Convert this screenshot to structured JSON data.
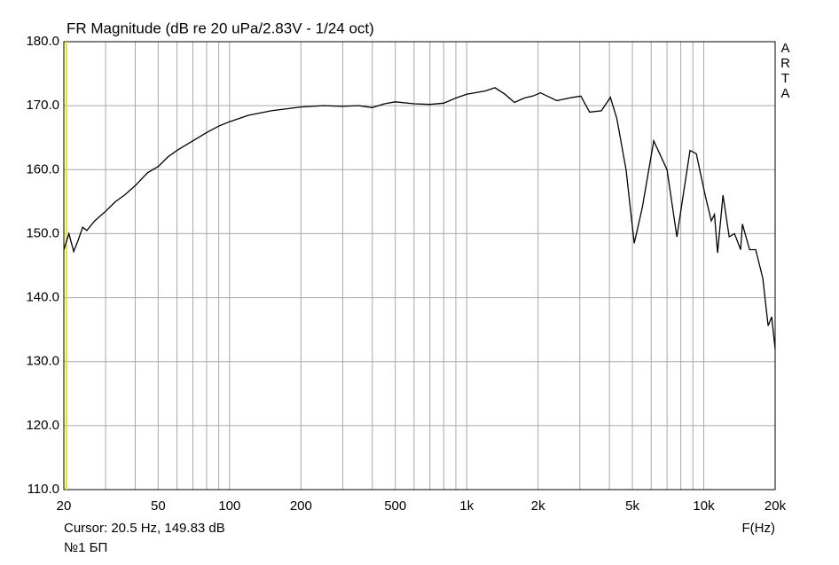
{
  "chart_data": {
    "type": "line",
    "title": "FR Magnitude (dB re 20 uPa/2.83V - 1/24 oct)",
    "x_label": "F(Hz)",
    "watermark": "ARTA",
    "footer": "№1 БП",
    "cursor": {
      "label": "Cursor: 20.5 Hz, 149.83 dB",
      "x": 20.5,
      "color": "#e8e800"
    },
    "x_scale": "log",
    "grid": true,
    "xlim": [
      20,
      20000
    ],
    "xticks": [
      20,
      50,
      100,
      200,
      500,
      {
        "value": 1000,
        "label": "1k"
      },
      {
        "value": 2000,
        "label": "2k"
      },
      {
        "value": 5000,
        "label": "5k"
      },
      {
        "value": 10000,
        "label": "10k"
      },
      {
        "value": 20000,
        "label": "20k"
      }
    ],
    "minor_gridlines": [
      30,
      40,
      60,
      70,
      80,
      90,
      300,
      400,
      600,
      700,
      800,
      900,
      3000,
      4000,
      6000,
      7000,
      8000,
      9000
    ],
    "ylim": [
      110,
      180
    ],
    "yticks": [
      {
        "value": 110,
        "label": "110.0"
      },
      {
        "value": 120,
        "label": "120.0"
      },
      {
        "value": 130,
        "label": "130.0"
      },
      {
        "value": 140,
        "label": "140.0"
      },
      {
        "value": 150,
        "label": "150.0"
      },
      {
        "value": 160,
        "label": "160.0"
      },
      {
        "value": 170,
        "label": "170.0"
      },
      {
        "value": 180,
        "label": "180.0"
      }
    ],
    "x": [
      20,
      21,
      22,
      23,
      24,
      25,
      27,
      30,
      33,
      36,
      40,
      45,
      50,
      55,
      60,
      70,
      80,
      90,
      100,
      120,
      150,
      200,
      250,
      300,
      350,
      400,
      450,
      500,
      600,
      700,
      800,
      900,
      1000,
      1200,
      1316,
      1450,
      1590,
      1750,
      1900,
      2050,
      2400,
      2800,
      3030,
      3300,
      3700,
      4035,
      4300,
      4700,
      5090,
      5500,
      6150,
      7000,
      7700,
      8750,
      9300,
      10140,
      10760,
      11100,
      11440,
      12050,
      12800,
      13480,
      14300,
      14560,
      15600,
      16560,
      17740,
      18680,
      19340,
      20000
    ],
    "series": [
      {
        "name": "FR Magnitude",
        "color": "#000000",
        "values": [
          147.5,
          150,
          147.2,
          149,
          151,
          150.5,
          152,
          153.5,
          155,
          156,
          157.5,
          159.5,
          160.5,
          162,
          163,
          164.5,
          165.8,
          166.8,
          167.5,
          168.5,
          169.2,
          169.8,
          170,
          169.9,
          170,
          169.7,
          170.3,
          170.6,
          170.3,
          170.2,
          170.4,
          171.2,
          171.8,
          172.3,
          172.8,
          171.8,
          170.5,
          171.2,
          171.5,
          172,
          170.8,
          171.3,
          171.5,
          169,
          169.2,
          171.3,
          168,
          160,
          148.5,
          154,
          164.5,
          160,
          149.5,
          163,
          162.5,
          156,
          152,
          153,
          147,
          156,
          149.5,
          150,
          147.5,
          151.5,
          147.5,
          147.5,
          143,
          135.6,
          137,
          132
        ]
      }
    ]
  }
}
